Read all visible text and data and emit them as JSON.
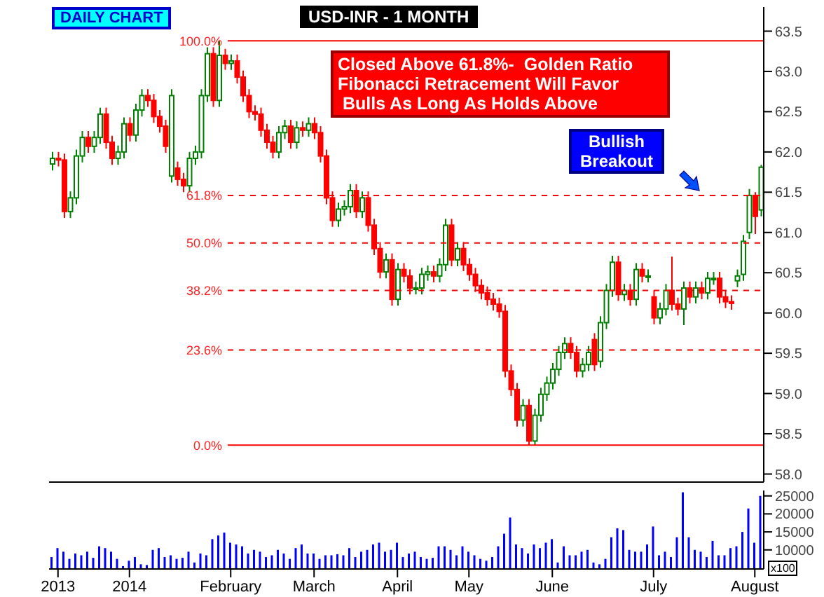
{
  "chart_data": [
    {
      "type": "candlestick",
      "title": "USD-INR - 1 MONTH",
      "annotations": [
        "DAILY CHART",
        "Closed Above 61.8%-  Golden Ratio\nFibonacci Retracement Will Favor\n Bulls As Long As Holds Above",
        "Bullish Breakout",
        {
          "text": "100.0%",
          "x": "February",
          "y": 63.38
        },
        {
          "text": "61.8%",
          "x": "February",
          "y": 61.46
        },
        {
          "text": "50.0%",
          "x": "February",
          "y": 60.87
        },
        {
          "text": "38.2%",
          "x": "February",
          "y": 60.28
        },
        {
          "text": "23.6%",
          "x": "February",
          "y": 59.54
        },
        {
          "text": "0.0%",
          "x": "February",
          "y": 58.36
        }
      ],
      "categories": [
        null,
        "2013",
        null,
        null,
        null,
        null,
        null,
        null,
        null,
        null,
        null,
        null,
        null,
        "2014",
        null,
        null,
        null,
        null,
        null,
        null,
        null,
        null,
        null,
        null,
        null,
        null,
        null,
        null,
        null,
        null,
        "February",
        null,
        null,
        null,
        null,
        null,
        null,
        null,
        null,
        null,
        null,
        null,
        null,
        null,
        "March",
        null,
        null,
        null,
        null,
        null,
        null,
        null,
        null,
        null,
        null,
        null,
        null,
        null,
        "April",
        null,
        null,
        null,
        null,
        null,
        null,
        null,
        null,
        null,
        null,
        null,
        "May",
        null,
        null,
        null,
        null,
        null,
        null,
        null,
        null,
        null,
        null,
        null,
        null,
        null,
        "June",
        null,
        null,
        null,
        null,
        null,
        null,
        null,
        null,
        null,
        null,
        null,
        null,
        null,
        null,
        null,
        null,
        "July",
        null,
        null,
        null,
        null,
        null,
        null,
        null,
        null,
        null,
        null,
        null,
        null,
        null,
        null,
        null,
        null,
        "August",
        null
      ],
      "ohlc": [
        [
          61.85,
          62.0,
          61.77,
          61.92
        ],
        [
          61.92,
          62.0,
          61.82,
          61.9
        ],
        [
          61.9,
          61.98,
          61.18,
          61.26
        ],
        [
          61.26,
          61.51,
          61.18,
          61.43
        ],
        [
          61.43,
          62.03,
          61.35,
          61.95
        ],
        [
          61.95,
          62.26,
          61.87,
          62.18
        ],
        [
          62.18,
          62.26,
          61.99,
          62.07
        ],
        [
          62.07,
          62.26,
          61.99,
          62.18
        ],
        [
          62.18,
          62.55,
          62.1,
          62.47
        ],
        [
          62.47,
          62.55,
          62.04,
          62.12
        ],
        [
          62.12,
          62.2,
          61.84,
          61.92
        ],
        [
          61.92,
          62.08,
          61.84,
          62.0
        ],
        [
          62.0,
          62.43,
          61.92,
          62.35
        ],
        [
          62.35,
          62.43,
          62.13,
          62.21
        ],
        [
          62.21,
          62.6,
          62.13,
          62.52
        ],
        [
          62.52,
          62.78,
          62.44,
          62.7
        ],
        [
          62.7,
          62.78,
          62.56,
          62.64
        ],
        [
          62.64,
          62.72,
          62.36,
          62.44
        ],
        [
          62.44,
          62.52,
          62.24,
          62.32
        ],
        [
          62.32,
          62.4,
          61.99,
          62.07
        ],
        [
          61.7,
          62.78,
          61.62,
          62.7
        ],
        [
          61.8,
          61.88,
          61.58,
          61.66
        ],
        [
          61.66,
          61.74,
          61.5,
          61.58
        ],
        [
          61.58,
          62.0,
          61.5,
          61.92
        ],
        [
          61.92,
          62.08,
          61.84,
          62.0
        ],
        [
          62.0,
          62.78,
          61.92,
          62.7
        ],
        [
          62.7,
          63.3,
          62.62,
          63.22
        ],
        [
          63.22,
          63.3,
          62.56,
          62.64
        ],
        [
          62.64,
          63.38,
          62.56,
          63.2
        ],
        [
          63.2,
          63.28,
          63.02,
          63.1
        ],
        [
          63.1,
          63.21,
          63.02,
          63.13
        ],
        [
          63.13,
          63.21,
          62.85,
          62.93
        ],
        [
          62.93,
          63.01,
          62.62,
          62.7
        ],
        [
          62.7,
          62.78,
          62.42,
          62.5
        ],
        [
          62.5,
          62.58,
          62.39,
          62.47
        ],
        [
          62.47,
          62.55,
          62.19,
          62.27
        ],
        [
          62.27,
          62.35,
          62.04,
          62.12
        ],
        [
          62.12,
          62.2,
          61.92,
          62.0
        ],
        [
          62.0,
          62.32,
          61.92,
          62.24
        ],
        [
          62.24,
          62.4,
          62.16,
          62.32
        ],
        [
          62.32,
          62.4,
          62.04,
          62.12
        ],
        [
          62.12,
          62.38,
          62.04,
          62.3
        ],
        [
          62.3,
          62.38,
          62.19,
          62.27
        ],
        [
          62.27,
          62.43,
          62.19,
          62.35
        ],
        [
          62.35,
          62.43,
          62.16,
          62.24
        ],
        [
          62.24,
          62.32,
          61.87,
          61.95
        ],
        [
          61.95,
          62.03,
          61.35,
          61.43
        ],
        [
          61.43,
          61.51,
          61.07,
          61.15
        ],
        [
          61.15,
          61.37,
          61.07,
          61.29
        ],
        [
          61.29,
          61.4,
          61.21,
          61.32
        ],
        [
          61.32,
          61.6,
          61.24,
          61.52
        ],
        [
          61.52,
          61.6,
          61.18,
          61.26
        ],
        [
          61.26,
          61.51,
          61.18,
          61.43
        ],
        [
          61.43,
          61.51,
          61.01,
          61.09
        ],
        [
          61.09,
          61.17,
          60.72,
          60.8
        ],
        [
          60.8,
          60.88,
          60.43,
          60.51
        ],
        [
          60.51,
          60.74,
          60.43,
          60.66
        ],
        [
          60.66,
          60.74,
          60.09,
          60.17
        ],
        [
          60.17,
          60.62,
          60.09,
          60.54
        ],
        [
          60.54,
          60.62,
          60.38,
          60.46
        ],
        [
          60.46,
          60.54,
          60.23,
          60.31
        ],
        [
          60.31,
          60.39,
          60.23,
          60.31
        ],
        [
          60.31,
          60.56,
          60.23,
          60.48
        ],
        [
          60.48,
          60.59,
          60.4,
          60.51
        ],
        [
          60.51,
          60.59,
          60.38,
          60.46
        ],
        [
          60.46,
          60.68,
          60.38,
          60.6
        ],
        [
          60.6,
          61.17,
          60.52,
          61.09
        ],
        [
          61.09,
          61.17,
          60.58,
          60.66
        ],
        [
          60.66,
          60.88,
          60.58,
          60.8
        ],
        [
          60.8,
          60.88,
          60.52,
          60.6
        ],
        [
          60.6,
          60.68,
          60.4,
          60.48
        ],
        [
          60.48,
          60.56,
          60.26,
          60.34
        ],
        [
          60.34,
          60.42,
          60.17,
          60.25
        ],
        [
          60.25,
          60.33,
          60.09,
          60.17
        ],
        [
          60.17,
          60.25,
          60.03,
          60.11
        ],
        [
          60.11,
          60.19,
          59.94,
          60.02
        ],
        [
          60.02,
          60.1,
          59.2,
          59.28
        ],
        [
          59.28,
          59.36,
          58.97,
          59.05
        ],
        [
          59.05,
          59.13,
          58.59,
          58.67
        ],
        [
          58.67,
          58.93,
          58.59,
          58.85
        ],
        [
          58.85,
          58.93,
          58.36,
          58.41
        ],
        [
          58.41,
          58.81,
          58.36,
          58.73
        ],
        [
          58.73,
          59.07,
          58.65,
          58.99
        ],
        [
          58.99,
          59.21,
          58.91,
          59.13
        ],
        [
          59.13,
          59.38,
          59.05,
          59.3
        ],
        [
          59.3,
          59.59,
          59.22,
          59.51
        ],
        [
          59.51,
          59.7,
          59.43,
          59.62
        ],
        [
          59.62,
          59.7,
          59.43,
          59.51
        ],
        [
          59.51,
          59.59,
          59.2,
          59.28
        ],
        [
          59.28,
          59.44,
          59.2,
          59.36
        ],
        [
          59.36,
          59.59,
          59.28,
          59.51
        ],
        [
          59.67,
          59.75,
          59.28,
          59.36
        ],
        [
          59.4,
          59.96,
          59.32,
          59.88
        ],
        [
          59.88,
          60.36,
          59.8,
          60.28
        ],
        [
          60.28,
          60.71,
          60.2,
          60.63
        ],
        [
          60.63,
          60.71,
          60.15,
          60.23
        ],
        [
          60.23,
          60.36,
          60.15,
          60.28
        ],
        [
          60.28,
          60.36,
          60.09,
          60.17
        ],
        [
          60.17,
          60.62,
          60.09,
          60.54
        ],
        [
          60.54,
          60.62,
          60.38,
          60.46
        ],
        [
          60.46,
          60.54,
          60.38,
          60.46
        ],
        [
          60.2,
          60.28,
          59.86,
          59.94
        ],
        [
          59.94,
          60.13,
          59.86,
          60.05
        ],
        [
          60.05,
          60.36,
          59.97,
          60.28
        ],
        [
          60.28,
          60.7,
          60.03,
          60.11
        ],
        [
          60.11,
          60.19,
          59.97,
          60.05
        ],
        [
          60.05,
          60.39,
          59.85,
          60.31
        ],
        [
          60.31,
          60.39,
          60.12,
          60.2
        ],
        [
          60.2,
          60.39,
          60.12,
          60.31
        ],
        [
          60.31,
          60.39,
          60.17,
          60.25
        ],
        [
          60.25,
          60.51,
          60.17,
          60.43
        ],
        [
          60.43,
          60.51,
          60.35,
          60.43
        ],
        [
          60.43,
          60.51,
          60.12,
          60.2
        ],
        [
          60.2,
          60.28,
          60.06,
          60.14
        ],
        [
          60.14,
          60.22,
          60.04,
          60.12
        ],
        [
          60.4,
          60.54,
          60.32,
          60.46
        ],
        [
          60.48,
          60.97,
          60.4,
          60.89
        ],
        [
          61.0,
          61.54,
          60.92,
          61.46
        ],
        [
          61.46,
          61.5,
          60.98,
          61.2
        ],
        [
          61.28,
          61.84,
          61.2,
          61.81
        ]
      ],
      "colors": [
        "#008000",
        "#ff0000",
        "#ff0000",
        "#008000",
        "#008000",
        "#008000",
        "#ff0000",
        "#008000",
        "#008000",
        "#ff0000",
        "#ff0000",
        "#008000",
        "#008000",
        "#ff0000",
        "#008000",
        "#008000",
        "#ff0000",
        "#ff0000",
        "#ff0000",
        "#ff0000",
        "#008000",
        "#ff0000",
        "#ff0000",
        "#008000",
        "#008000",
        "#008000",
        "#008000",
        "#ff0000",
        "#008000",
        "#ff0000",
        "#008000",
        "#ff0000",
        "#ff0000",
        "#ff0000",
        "#ff0000",
        "#ff0000",
        "#ff0000",
        "#ff0000",
        "#008000",
        "#008000",
        "#ff0000",
        "#008000",
        "#ff0000",
        "#008000",
        "#ff0000",
        "#ff0000",
        "#ff0000",
        "#ff0000",
        "#008000",
        "#008000",
        "#008000",
        "#ff0000",
        "#008000",
        "#ff0000",
        "#ff0000",
        "#ff0000",
        "#008000",
        "#ff0000",
        "#008000",
        "#ff0000",
        "#ff0000",
        "#008000",
        "#008000",
        "#008000",
        "#ff0000",
        "#008000",
        "#008000",
        "#ff0000",
        "#008000",
        "#ff0000",
        "#ff0000",
        "#ff0000",
        "#ff0000",
        "#ff0000",
        "#ff0000",
        "#ff0000",
        "#ff0000",
        "#ff0000",
        "#ff0000",
        "#008000",
        "#ff0000",
        "#008000",
        "#008000",
        "#008000",
        "#008000",
        "#008000",
        "#008000",
        "#ff0000",
        "#ff0000",
        "#008000",
        "#008000",
        "#ff0000",
        "#008000",
        "#008000",
        "#008000",
        "#ff0000",
        "#008000",
        "#ff0000",
        "#008000",
        "#ff0000",
        "#008000",
        "#ff0000",
        "#008000",
        "#008000",
        "#ff0000",
        "#ff0000",
        "#008000",
        "#ff0000",
        "#008000",
        "#ff0000",
        "#008000",
        "#008000",
        "#ff0000",
        "#ff0000",
        "#ff0000",
        "#008000",
        "#008000",
        "#008000",
        "#ff0000",
        "#008000"
      ],
      "ylim": [
        57.9,
        63.8
      ],
      "yticks": [
        {
          "value": 58,
          "label": "58.0"
        },
        58.5,
        {
          "value": 59,
          "label": "59.0"
        },
        59.5,
        {
          "value": 60,
          "label": "60.0"
        },
        60.5,
        {
          "value": 61,
          "label": "61.0"
        },
        61.5,
        {
          "value": 62,
          "label": "62.0"
        },
        62.5,
        {
          "value": 63,
          "label": "63.0"
        },
        63.5
      ],
      "ref_lines": [
        {
          "axis": "y",
          "value": 63.38,
          "color": "#ff0000",
          "line_style": "solid"
        },
        {
          "axis": "y",
          "value": 61.46,
          "color": "#ff0000",
          "line_style": "dashed"
        },
        {
          "axis": "y",
          "value": 60.87,
          "color": "#ff0000",
          "line_style": "dashed"
        },
        {
          "axis": "y",
          "value": 60.28,
          "color": "#ff0000",
          "line_style": "dashed"
        },
        {
          "axis": "y",
          "value": 59.54,
          "color": "#ff0000",
          "line_style": "dashed"
        },
        {
          "axis": "y",
          "value": 58.36,
          "color": "#ff0000",
          "line_style": "solid"
        }
      ],
      "tick_labels": "y"
    },
    {
      "type": "bar",
      "annotations": [
        "x100"
      ],
      "categories": [
        null,
        "2013",
        null,
        null,
        null,
        null,
        null,
        null,
        null,
        null,
        null,
        null,
        null,
        "2014",
        null,
        null,
        null,
        null,
        null,
        null,
        null,
        null,
        null,
        null,
        null,
        null,
        null,
        null,
        null,
        null,
        "February",
        null,
        null,
        null,
        null,
        null,
        null,
        null,
        null,
        null,
        null,
        null,
        null,
        null,
        "March",
        null,
        null,
        null,
        null,
        null,
        null,
        null,
        null,
        null,
        null,
        null,
        null,
        null,
        "April",
        null,
        null,
        null,
        null,
        null,
        null,
        null,
        null,
        null,
        null,
        null,
        "May",
        null,
        null,
        null,
        null,
        null,
        null,
        null,
        null,
        null,
        null,
        null,
        null,
        null,
        "June",
        null,
        null,
        null,
        null,
        null,
        null,
        null,
        null,
        null,
        null,
        null,
        null,
        null,
        null,
        null,
        null,
        "July",
        null,
        null,
        null,
        null,
        null,
        null,
        null,
        null,
        null,
        null,
        null,
        null,
        null,
        null,
        null,
        null,
        "August",
        null
      ],
      "values": [
        8000,
        10500,
        9500,
        7500,
        9000,
        8500,
        9500,
        7800,
        11000,
        10500,
        9500,
        7500,
        5500,
        7000,
        8000,
        6000,
        5800,
        10000,
        10500,
        8000,
        8500,
        7500,
        7800,
        9500,
        6500,
        9000,
        8500,
        13000,
        14000,
        14800,
        12000,
        11500,
        11000,
        9000,
        10000,
        9500,
        8000,
        8500,
        10000,
        9000,
        7500,
        10500,
        11500,
        9000,
        9000,
        7500,
        8500,
        8500,
        8800,
        8500,
        10500,
        8000,
        9500,
        10000,
        11500,
        12000,
        9500,
        10000,
        12000,
        8000,
        9000,
        9500,
        8000,
        7500,
        7800,
        11000,
        11000,
        10000,
        8500,
        11000,
        9500,
        8500,
        7500,
        7000,
        8000,
        11000,
        14500,
        19000,
        11500,
        10500,
        9000,
        11500,
        10500,
        12000,
        13000,
        6500,
        11000,
        8500,
        8500,
        9500,
        10000,
        6500,
        6000,
        7500,
        13500,
        16000,
        15500,
        10000,
        9500,
        9500,
        11500,
        16500,
        8500,
        9500,
        8000,
        13500,
        26000,
        13500,
        10000,
        9500,
        8000,
        12500,
        8500,
        8500,
        10500,
        11000,
        15000,
        21500,
        12000,
        25000
      ],
      "color": "#0000ff",
      "ylim": [
        4700,
        26500
      ],
      "yticks": [
        10000,
        15000,
        20000,
        25000
      ]
    }
  ]
}
